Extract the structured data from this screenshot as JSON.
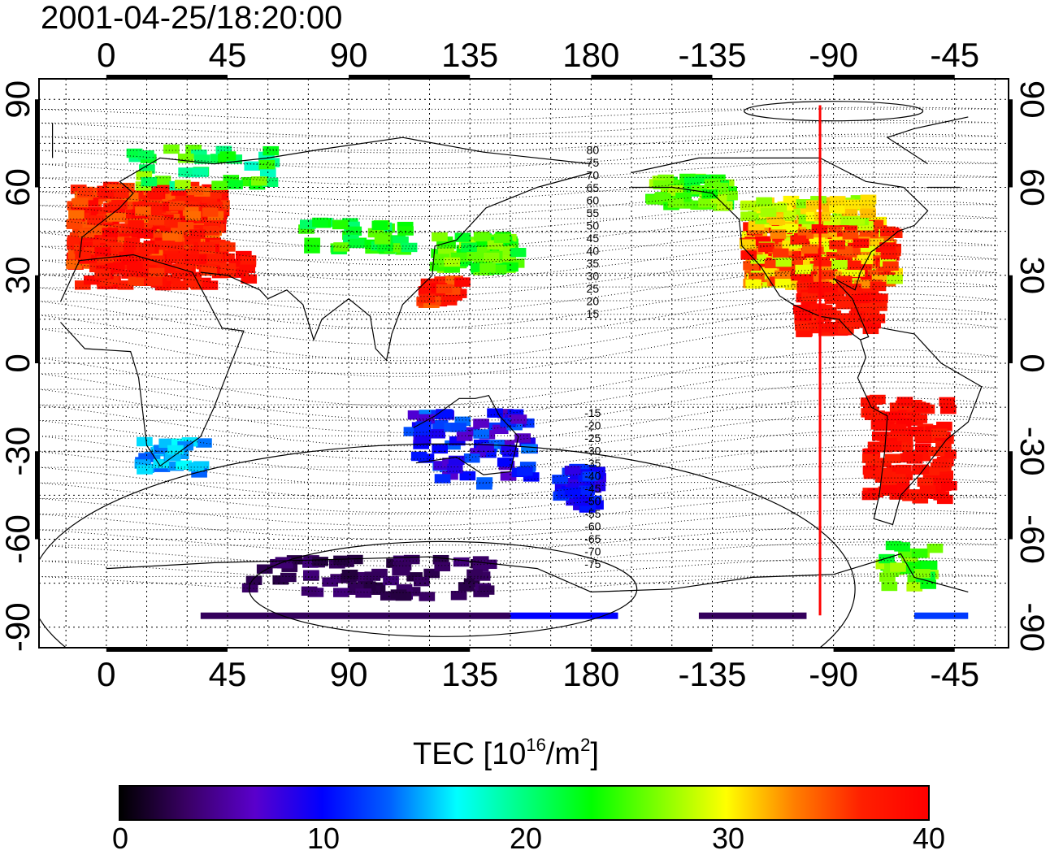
{
  "title": "2001-04-25/18:20:00",
  "map": {
    "top_ticks": [
      "0",
      "45",
      "90",
      "135",
      "180",
      "-135",
      "-90",
      "-45"
    ],
    "bottom_ticks": [
      "0",
      "45",
      "90",
      "135",
      "180",
      "-135",
      "-90",
      "-45"
    ],
    "left_ticks": [
      "90",
      "60",
      "30",
      "0",
      "-30",
      "-60",
      "-90"
    ],
    "right_ticks": [
      "90",
      "60",
      "30",
      "0",
      "-30",
      "-60",
      "-90"
    ],
    "terminator_longitude": -95,
    "terminator_color": "#ff0000",
    "contour_labels_north": [
      "80",
      "75",
      "70",
      "65",
      "60",
      "55",
      "50",
      "45",
      "40",
      "35",
      "30",
      "25",
      "20",
      "15"
    ],
    "contour_labels_south": [
      "-15",
      "-20",
      "-25",
      "-30",
      "-35",
      "-40",
      "-45",
      "-50",
      "-55",
      "-60",
      "-65",
      "-70",
      "-75"
    ]
  },
  "colorbar": {
    "title_prefix": "TEC  [10",
    "title_sup1": "16",
    "title_mid": "/m",
    "title_sup2": "2",
    "title_suffix": "]",
    "labels": [
      "0",
      "10",
      "20",
      "30",
      "40"
    ],
    "min": 0,
    "max": 40,
    "colors": [
      "#000000",
      "#3a0066",
      "#5a00cc",
      "#0000ff",
      "#0060ff",
      "#00ffff",
      "#00ff80",
      "#00ff00",
      "#80ff00",
      "#ffff00",
      "#ff8000",
      "#ff2000",
      "#ff0000"
    ]
  }
}
